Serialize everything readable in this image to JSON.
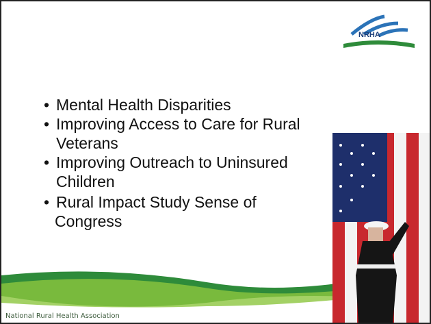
{
  "logo": "NRHA",
  "bullets": [
    [
      "Mental Health Disparities"
    ],
    [
      "Improving Access to Care for Rural",
      "Veterans"
    ],
    [
      "Improving Outreach to Uninsured",
      "Children"
    ],
    [
      "Rural Impact Study Sense of",
      "Congress"
    ]
  ],
  "footer": "National Rural Health Association"
}
